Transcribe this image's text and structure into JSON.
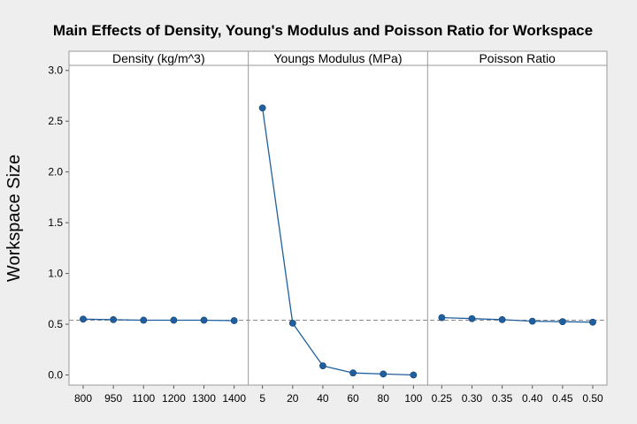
{
  "chart_data": {
    "type": "line",
    "title": "Main Effects of Density, Young's Modulus and Poisson Ratio for Workspace",
    "ylabel": "Workspace Size",
    "ylim": [
      -0.1,
      3.05
    ],
    "yticks": [
      0.0,
      0.5,
      1.0,
      1.5,
      2.0,
      2.5,
      3.0
    ],
    "ytick_labels": [
      "0.0",
      "0.5",
      "1.0",
      "1.5",
      "2.0",
      "2.5",
      "3.0"
    ],
    "reference_mean": 0.54,
    "panels": [
      {
        "name": "Density (kg/m^3)",
        "x_labels": [
          "800",
          "950",
          "1100",
          "1200",
          "1300",
          "1400"
        ],
        "values": [
          0.55,
          0.545,
          0.54,
          0.54,
          0.54,
          0.535
        ]
      },
      {
        "name": "Youngs Modulus (MPa)",
        "x_labels": [
          "5",
          "20",
          "40",
          "60",
          "80",
          "100"
        ],
        "values": [
          2.63,
          0.51,
          0.09,
          0.02,
          0.01,
          0.0
        ]
      },
      {
        "name": "Poisson Ratio",
        "x_labels": [
          "0.25",
          "0.30",
          "0.35",
          "0.40",
          "0.45",
          "0.50"
        ],
        "values": [
          0.565,
          0.555,
          0.545,
          0.53,
          0.525,
          0.52
        ]
      }
    ],
    "colors": {
      "line": "#1f5f9f",
      "marker": "#1f5f9f",
      "reference": "#8c8c8c",
      "panel_bg": "#ffffff",
      "header_bg": "#ffffff",
      "frame": "#9a9a9a"
    }
  }
}
